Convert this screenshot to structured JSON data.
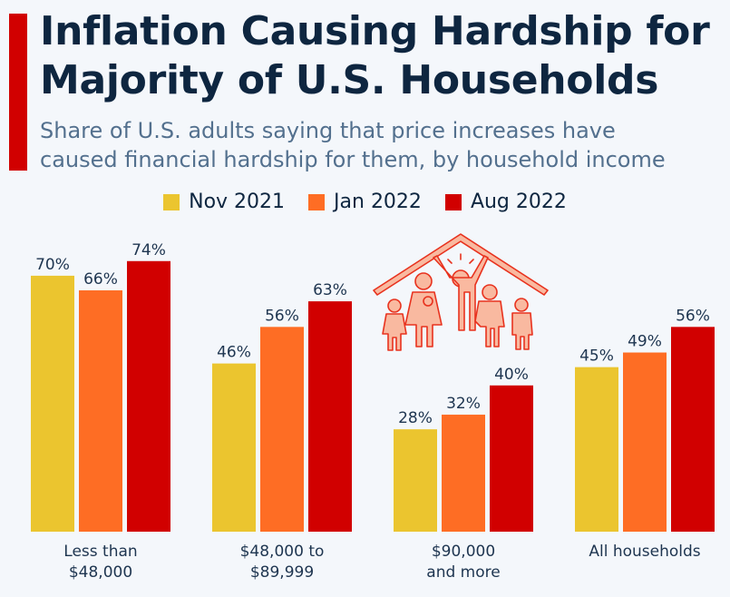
{
  "header": {
    "title_line1": "Inflation Causing Hardship for",
    "title_line2": "Majority of U.S. Households",
    "subtitle_line1": "Share of U.S. adults saying that price increases have",
    "subtitle_line2": "caused financial hardship for them, by household income"
  },
  "illustration": {
    "icon": "family-under-roof-icon"
  },
  "chart_data": {
    "type": "bar",
    "title": "Inflation Causing Hardship for Majority of U.S. Households",
    "subtitle": "Share of U.S. adults saying that price increases have caused financial hardship for them, by household income",
    "xlabel": "",
    "ylabel": "",
    "ylim": [
      0,
      100
    ],
    "grid": false,
    "legend_position": "top-center",
    "value_suffix": "%",
    "categories": [
      [
        "Less than",
        "$48,000"
      ],
      [
        "$48,000 to",
        "$89,999"
      ],
      [
        "$90,000",
        "and more"
      ],
      [
        "All households"
      ]
    ],
    "series": [
      {
        "name": "Nov 2021",
        "color": "#ebc52f",
        "values": [
          70,
          46,
          28,
          45
        ]
      },
      {
        "name": "Jan 2022",
        "color": "#fe6d24",
        "values": [
          66,
          56,
          32,
          49
        ]
      },
      {
        "name": "Aug 2022",
        "color": "#d10000",
        "values": [
          74,
          63,
          40,
          56
        ]
      }
    ]
  }
}
